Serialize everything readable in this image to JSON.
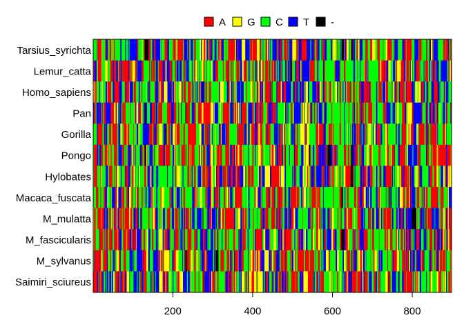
{
  "chart_data": {
    "type": "heatmap",
    "title": "",
    "xlabel": "",
    "ylabel": "",
    "xlim": [
      1,
      898
    ],
    "x_ticks": [
      200,
      400,
      600,
      800
    ],
    "x_tick_labels": [
      "200",
      "400",
      "600",
      "800"
    ],
    "rows": [
      "Tarsius_syrichta",
      "Lemur_catta",
      "Homo_sapiens",
      "Pan",
      "Gorilla",
      "Pongo",
      "Hylobates",
      "Macaca_fuscata",
      "M_mulatta",
      "M_fascicularis",
      "M_sylvanus",
      "Saimiri_sciureus"
    ],
    "sequence_length": 898,
    "legend": {
      "position": "top",
      "entries": [
        {
          "label": "A",
          "color": "#ff0000"
        },
        {
          "label": "G",
          "color": "#ffff00"
        },
        {
          "label": "C",
          "color": "#00ff00"
        },
        {
          "label": "T",
          "color": "#0000ff"
        },
        {
          "label": "-",
          "color": "#000000"
        }
      ]
    },
    "base_frequencies": {
      "A": 0.31,
      "G": 0.12,
      "C": 0.33,
      "T": 0.23,
      "-": 0.01
    },
    "grid": false
  }
}
